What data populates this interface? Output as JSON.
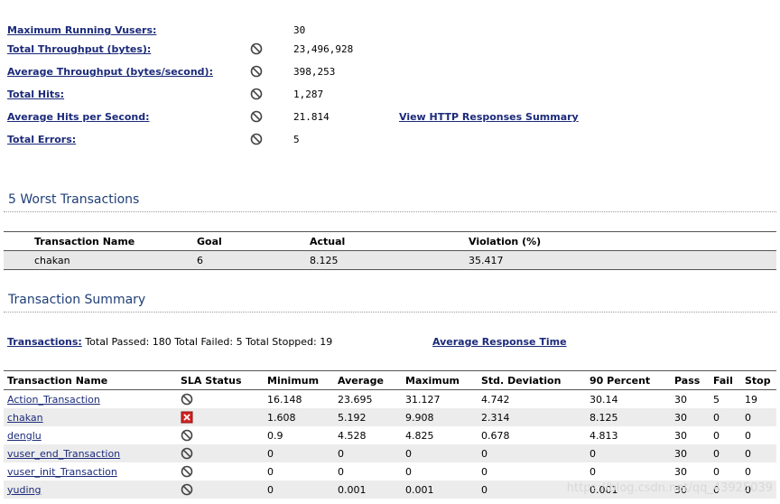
{
  "stats": [
    {
      "label": "Maximum Running Vusers:",
      "value": "30",
      "icon": false
    },
    {
      "label": "Total Throughput (bytes):",
      "value": "23,496,928",
      "icon": true
    },
    {
      "label": "Average Throughput (bytes/second):",
      "value": "398,253",
      "icon": true
    },
    {
      "label": "Total Hits:",
      "value": "1,287",
      "icon": true
    },
    {
      "label": "Average Hits per Second:",
      "value": "21.814",
      "icon": true,
      "extra_link": "View HTTP Responses Summary"
    },
    {
      "label": "Total Errors:",
      "value": "5",
      "icon": true
    }
  ],
  "worst": {
    "title": "5 Worst Transactions",
    "headers": [
      "Transaction Name",
      "Goal",
      "Actual",
      "Violation (%)"
    ],
    "rows": [
      [
        "chakan",
        "6",
        "8.125",
        "35.417"
      ]
    ]
  },
  "summary": {
    "title": "Transaction Summary",
    "transactions_link": "Transactions:",
    "totals_text": "Total Passed: 180 Total Failed: 5 Total Stopped: 19",
    "avg_link": "Average Response Time",
    "headers": [
      "Transaction Name",
      "SLA Status",
      "Minimum",
      "Average",
      "Maximum",
      "Std. Deviation",
      "90 Percent",
      "Pass",
      "Fail",
      "Stop"
    ],
    "rows": [
      {
        "name": "Action_Transaction",
        "sla": "na",
        "min": "16.148",
        "avg": "23.695",
        "max": "31.127",
        "std": "4.742",
        "p90": "30.14",
        "pass": "30",
        "fail": "5",
        "stop": "19"
      },
      {
        "name": "chakan",
        "sla": "fail",
        "min": "1.608",
        "avg": "5.192",
        "max": "9.908",
        "std": "2.314",
        "p90": "8.125",
        "pass": "30",
        "fail": "0",
        "stop": "0"
      },
      {
        "name": "denglu",
        "sla": "na",
        "min": "0.9",
        "avg": "4.528",
        "max": "4.825",
        "std": "0.678",
        "p90": "4.813",
        "pass": "30",
        "fail": "0",
        "stop": "0"
      },
      {
        "name": "vuser_end_Transaction",
        "sla": "na",
        "min": "0",
        "avg": "0",
        "max": "0",
        "std": "0",
        "p90": "0",
        "pass": "30",
        "fail": "0",
        "stop": "0"
      },
      {
        "name": "vuser_init_Transaction",
        "sla": "na",
        "min": "0",
        "avg": "0",
        "max": "0",
        "std": "0",
        "p90": "0",
        "pass": "30",
        "fail": "0",
        "stop": "0"
      },
      {
        "name": "yuding",
        "sla": "na",
        "min": "0",
        "avg": "0.001",
        "max": "0.001",
        "std": "0",
        "p90": "0.001",
        "pass": "30",
        "fail": "0",
        "stop": "0"
      }
    ]
  },
  "watermark": "https://blog.csdn.net/qq_43925039",
  "icons": {
    "na": "no-symbol-icon",
    "fail": "red-x-icon"
  },
  "colors": {
    "link": "#1b2a7a",
    "title": "#1f3f77",
    "fail": "#d42424",
    "row_alt": "#ececec"
  }
}
